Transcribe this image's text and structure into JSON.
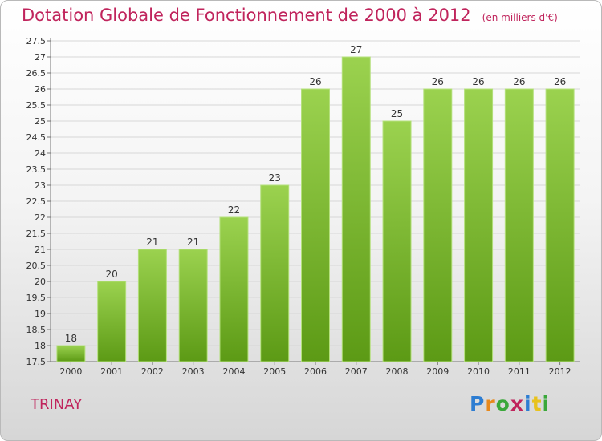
{
  "header": {
    "title": "Dotation Globale de Fonctionnement de 2000 à 2012",
    "unit": "(en milliers d'€)"
  },
  "footer": {
    "commune": "TRINAY",
    "logo": "Proxiti"
  },
  "colors": {
    "title": "#c0245c",
    "bar_top": "#9bd24f",
    "bar_bottom": "#5c9a15",
    "logo": [
      "#2d7dd2",
      "#e8891c",
      "#3aa83a",
      "#c0245c",
      "#2d7dd2",
      "#e8c21c",
      "#3aa83a"
    ]
  },
  "chart_data": {
    "type": "bar",
    "title": "Dotation Globale de Fonctionnement de 2000 à 2012",
    "subtitle": "(en milliers d'€)",
    "categories": [
      "2000",
      "2001",
      "2002",
      "2003",
      "2004",
      "2005",
      "2006",
      "2007",
      "2008",
      "2009",
      "2010",
      "2011",
      "2012"
    ],
    "values": [
      18,
      20,
      21,
      21,
      22,
      23,
      26,
      27,
      25,
      26,
      26,
      26,
      26
    ],
    "data_labels": [
      "18",
      "20",
      "21",
      "21",
      "22",
      "23",
      "26",
      "27",
      "25",
      "26",
      "26",
      "26",
      "26"
    ],
    "y_ticks": [
      "17.5",
      "18",
      "18.5",
      "19",
      "19.5",
      "20",
      "20.5",
      "21",
      "21.5",
      "22",
      "22.5",
      "23",
      "23.5",
      "24",
      "24.5",
      "25",
      "25.5",
      "26",
      "26.5",
      "27",
      "27.5"
    ],
    "ylim": [
      17.5,
      27.5
    ],
    "grid": true,
    "legend": "none"
  }
}
